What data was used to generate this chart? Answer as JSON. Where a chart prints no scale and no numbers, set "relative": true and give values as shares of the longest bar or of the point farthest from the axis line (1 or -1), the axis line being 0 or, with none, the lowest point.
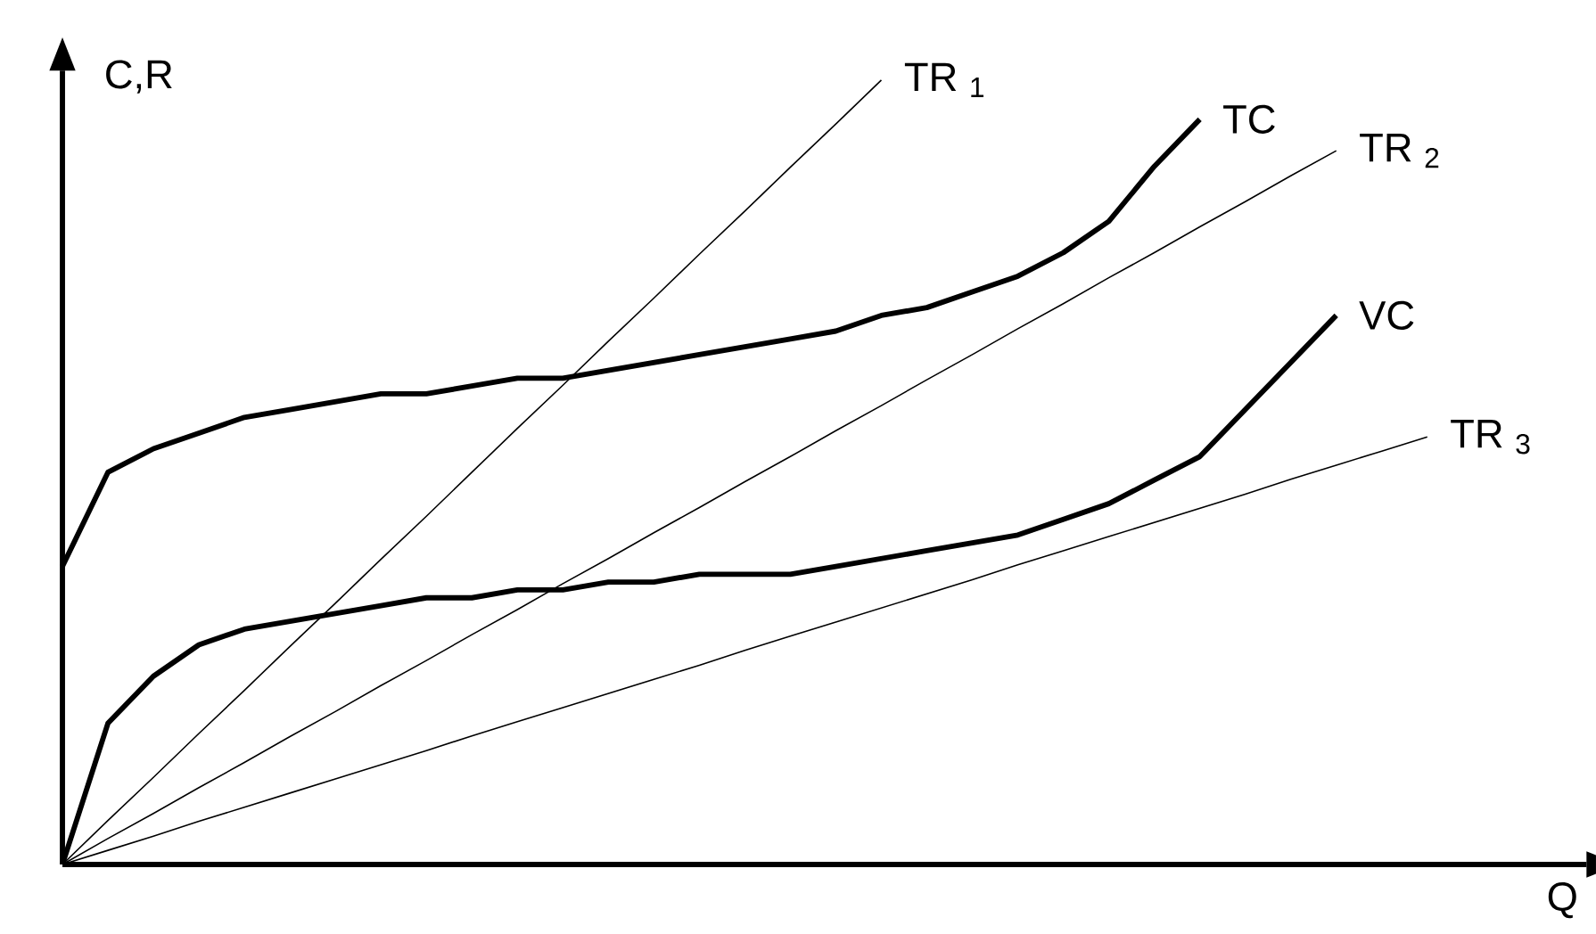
{
  "chart_data": {
    "type": "line",
    "relative": true,
    "xlabel": "Q",
    "ylabel": "C,R",
    "marker": "none",
    "line_style": "solid",
    "categories": [
      null,
      null,
      null,
      null,
      null,
      null,
      null,
      null,
      null,
      null,
      null,
      null,
      null,
      null,
      null,
      null,
      null,
      null,
      null,
      null,
      null,
      null,
      null,
      null,
      null,
      null,
      null,
      null,
      null,
      null,
      null,
      null,
      null,
      null
    ],
    "series": [
      {
        "name": "TC",
        "color": "#000000",
        "values": [
          0.38,
          0.5,
          0.53,
          0.55,
          0.57,
          0.58,
          0.59,
          0.6,
          0.6,
          0.61,
          0.62,
          0.62,
          0.63,
          0.64,
          0.65,
          0.66,
          0.67,
          0.68,
          0.7,
          0.71,
          0.73,
          0.75,
          0.78,
          0.82,
          0.89,
          0.95,
          null,
          null,
          null,
          null,
          null,
          null,
          null,
          null
        ]
      },
      {
        "name": "VC",
        "color": "#000000",
        "values": [
          0,
          0.18,
          0.24,
          0.28,
          0.3,
          0.31,
          0.32,
          0.33,
          0.34,
          0.34,
          0.35,
          0.35,
          0.36,
          0.36,
          0.37,
          0.37,
          0.37,
          0.38,
          0.39,
          0.4,
          0.41,
          0.42,
          0.44,
          0.46,
          0.49,
          0.52,
          0.58,
          0.64,
          0.7,
          null,
          null,
          null,
          null,
          null
        ]
      },
      {
        "name": "TR $_{1}$",
        "color": "#000000",
        "values": [
          0,
          0.056,
          0.111,
          0.167,
          0.222,
          0.278,
          0.333,
          0.389,
          0.444,
          0.5,
          0.556,
          0.611,
          0.667,
          0.722,
          0.778,
          0.833,
          0.889,
          0.944,
          1,
          null,
          null,
          null,
          null,
          null,
          null,
          null,
          null,
          null,
          null,
          null,
          null,
          null,
          null,
          null
        ]
      },
      {
        "name": "TR $_{2}$",
        "color": "#000000",
        "values": [
          0,
          0.033,
          0.065,
          0.098,
          0.13,
          0.163,
          0.195,
          0.228,
          0.26,
          0.293,
          0.325,
          0.358,
          0.39,
          0.423,
          0.455,
          0.488,
          0.52,
          0.553,
          0.585,
          0.618,
          0.65,
          0.683,
          0.715,
          0.748,
          0.78,
          0.813,
          0.845,
          0.878,
          0.91,
          null,
          null,
          null,
          null,
          null
        ]
      },
      {
        "name": "TR $_{3}$",
        "color": "#000000",
        "values": [
          0,
          0.018,
          0.036,
          0.055,
          0.073,
          0.091,
          0.109,
          0.127,
          0.145,
          0.164,
          0.182,
          0.2,
          0.218,
          0.236,
          0.254,
          0.273,
          0.291,
          0.309,
          0.327,
          0.345,
          0.363,
          0.382,
          0.4,
          0.418,
          0.436,
          0.454,
          0.472,
          0.491,
          0.509,
          0.527,
          0.545,
          null,
          null,
          null
        ]
      }
    ]
  }
}
